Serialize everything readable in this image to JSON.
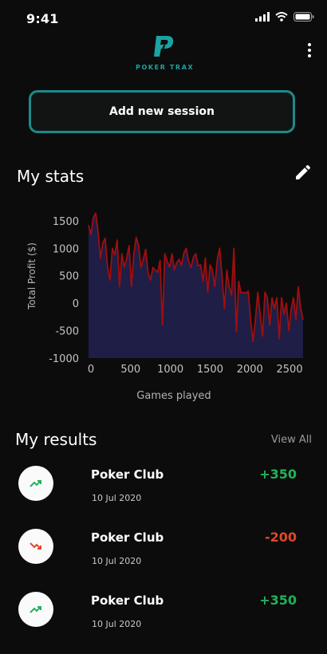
{
  "status_bar": {
    "time": "9:41"
  },
  "brand": {
    "logo_text": "POKER TRAX",
    "accent_color": "#1aa3a3"
  },
  "actions": {
    "add_session_label": "Add new session",
    "menu_icon": "more-vertical-icon"
  },
  "stats": {
    "title": "My stats",
    "edit_icon": "pencil-icon"
  },
  "chart_data": {
    "type": "area",
    "xlabel": "Games played",
    "ylabel": "Total Profit ($)",
    "xlim": [
      0,
      2700
    ],
    "ylim": [
      -1000,
      1600
    ],
    "xticks": [
      0,
      500,
      1000,
      1500,
      2000,
      2500
    ],
    "yticks": [
      1500,
      1000,
      500,
      0,
      -500,
      -1000
    ],
    "line_color": "#a00e0e",
    "fill_color": "#1e1e46",
    "series": [
      {
        "x": [
          0,
          30,
          60,
          90,
          120,
          150,
          180,
          210,
          240,
          270,
          300,
          330,
          360,
          390,
          420,
          450,
          480,
          510,
          540,
          570,
          600,
          630,
          660,
          690,
          720,
          750,
          780,
          810,
          840,
          870,
          900,
          930,
          960,
          990,
          1020,
          1050,
          1080,
          1110,
          1140,
          1170,
          1200,
          1230,
          1260,
          1290,
          1320,
          1350,
          1380,
          1410,
          1440,
          1470,
          1500,
          1530,
          1560,
          1590,
          1620,
          1650,
          1680,
          1710,
          1740,
          1770,
          1800,
          1830,
          1860,
          1890,
          1920,
          1950,
          1980,
          2010,
          2040,
          2070,
          2100,
          2130,
          2160,
          2190,
          2220,
          2250,
          2280,
          2310,
          2340,
          2370,
          2400,
          2430,
          2460,
          2490,
          2520,
          2550,
          2580,
          2610,
          2640,
          2670,
          2700
        ],
        "y": [
          1420,
          1250,
          1560,
          1640,
          1300,
          820,
          1100,
          1180,
          650,
          420,
          1000,
          880,
          1150,
          300,
          900,
          650,
          820,
          1050,
          300,
          900,
          1200,
          1050,
          650,
          800,
          980,
          550,
          420,
          650,
          600,
          560,
          780,
          -400,
          900,
          760,
          660,
          900,
          610,
          740,
          800,
          690,
          920,
          1000,
          760,
          650,
          840,
          900,
          680,
          700,
          400,
          820,
          200,
          700,
          600,
          300,
          800,
          1000,
          500,
          -100,
          600,
          300,
          150,
          1000,
          -520,
          400,
          180,
          200,
          180,
          220,
          -300,
          -700,
          -300,
          200,
          -200,
          -600,
          200,
          100,
          -400,
          100,
          -100,
          100,
          -650,
          100,
          -200,
          0,
          -500,
          -100,
          100,
          -300,
          300,
          -100,
          -300
        ]
      }
    ]
  },
  "results": {
    "title": "My results",
    "view_all": "View All",
    "items": [
      {
        "club": "Poker Club",
        "date": "10 Jul 2020",
        "amount": "+350",
        "trend": "trending-up-icon",
        "color": "#22b15a"
      },
      {
        "club": "Poker Club",
        "date": "10 Jul 2020",
        "amount": "-200",
        "trend": "trending-down-icon",
        "color": "#e0472b"
      },
      {
        "club": "Poker Club",
        "date": "10 Jul 2020",
        "amount": "+350",
        "trend": "trending-up-icon",
        "color": "#22b15a"
      }
    ]
  }
}
